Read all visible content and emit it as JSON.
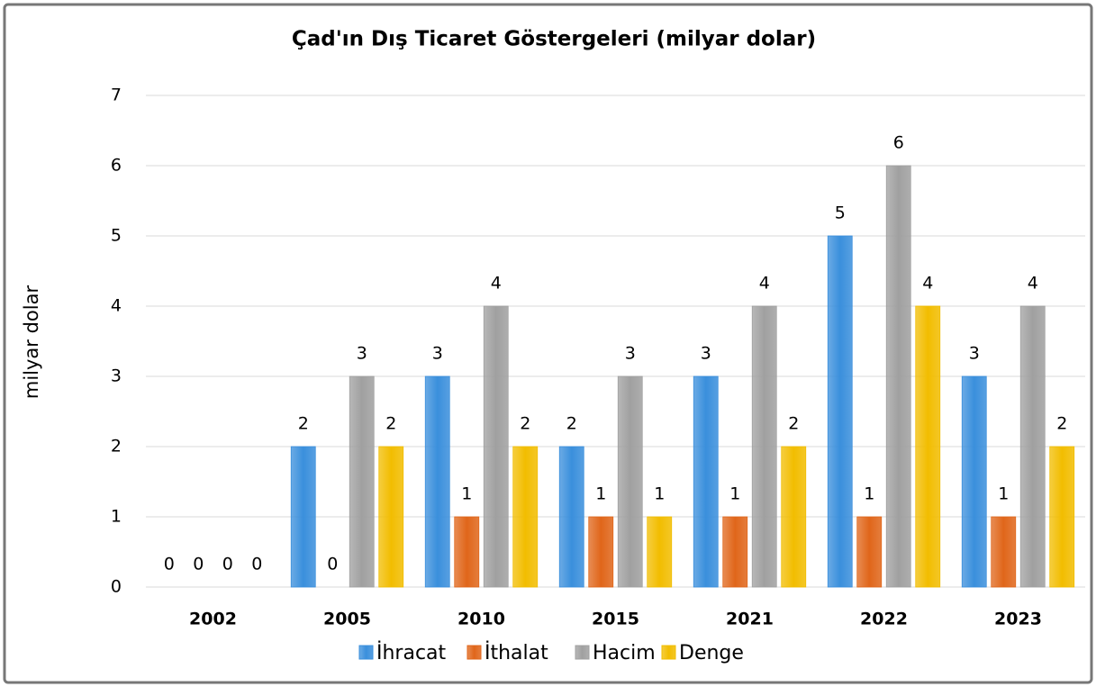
{
  "chart_data": {
    "type": "bar",
    "title": "Çad'ın Dış Ticaret Göstergeleri  (milyar dolar)",
    "y_label": "milyar dolar",
    "categories": [
      "2002",
      "2005",
      "2010",
      "2015",
      "2021",
      "2022",
      "2023"
    ],
    "series": [
      {
        "name": "İhracat",
        "color": "#3a8fdc",
        "values": [
          0,
          2,
          3,
          2,
          3,
          5,
          3
        ]
      },
      {
        "name": "İthalat",
        "color": "#e0661a",
        "values": [
          0,
          0,
          1,
          1,
          1,
          1,
          1
        ]
      },
      {
        "name": "Hacim",
        "color": "#a0a0a0",
        "values": [
          0,
          3,
          4,
          3,
          4,
          6,
          4
        ]
      },
      {
        "name": "Denge",
        "color": "#f2bd00",
        "values": [
          0,
          2,
          2,
          1,
          2,
          4,
          2
        ]
      }
    ],
    "ylim": [
      0,
      7
    ],
    "yticks": [
      0,
      1,
      2,
      3,
      4,
      5,
      6,
      7
    ],
    "grid": true,
    "legend": "bottom"
  }
}
